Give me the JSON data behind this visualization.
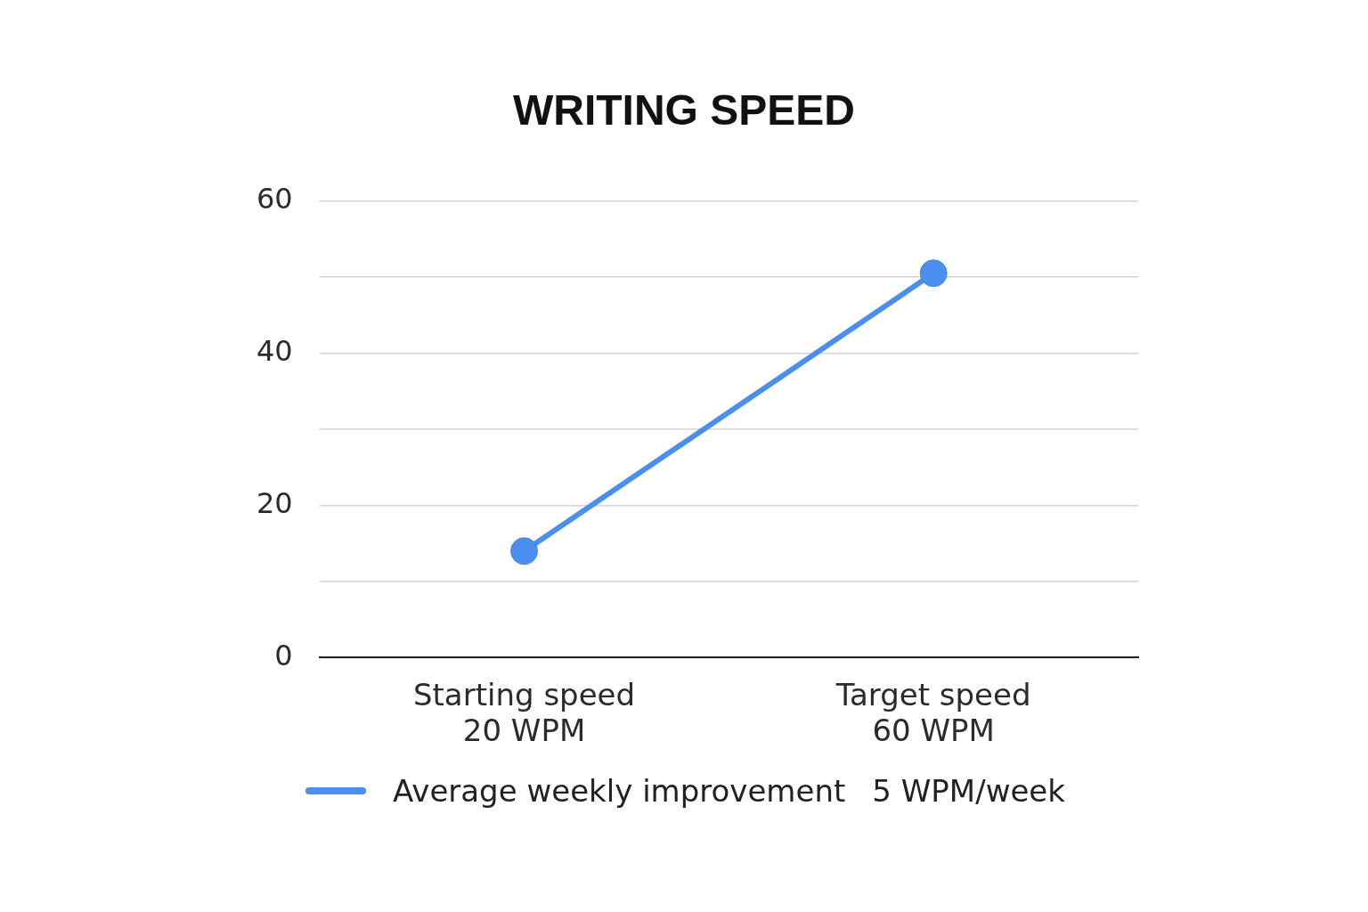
{
  "chart_data": {
    "type": "line",
    "title": "WRITING SPEED",
    "categories": [
      "Starting speed\n20 WPM",
      "Target speed\n60 WPM"
    ],
    "series": [
      {
        "name": "Average weekly improvement",
        "color": "#4a8ff0",
        "values": [
          14,
          50.5
        ]
      }
    ],
    "ylim": [
      0,
      60
    ],
    "yticks": [
      0,
      {
        "value": 10,
        "label": null
      },
      20,
      {
        "value": 30,
        "label": null
      },
      40,
      {
        "value": 50,
        "label": null
      },
      60
    ],
    "grid": "y",
    "legend": "bottom",
    "marker": "circle",
    "line_style": "solid",
    "annotations": [
      "5 WPM/week"
    ]
  }
}
